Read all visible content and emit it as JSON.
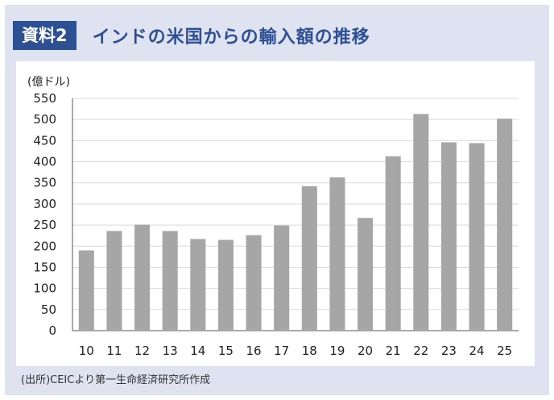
{
  "header": {
    "badge": "資料2",
    "title": "インドの米国からの輸入額の推移"
  },
  "source": "(出所)CEICより第一生命経済研究所作成",
  "colors": {
    "badge_bg": "#2d4f93",
    "title_text": "#2d4f93",
    "frame_bg": "#dfe3f1",
    "bar": "#a6a6a6",
    "gridline": "#d9d9d9"
  },
  "chart_data": {
    "type": "bar",
    "title": "",
    "xlabel": "",
    "ylabel": "(億ドル)",
    "ylim": [
      0,
      550
    ],
    "yticks": [
      "0",
      "50",
      "100",
      "150",
      "200",
      "250",
      "300",
      "350",
      "400",
      "450",
      "500",
      "550"
    ],
    "grid": true,
    "categories": [
      "10",
      "11",
      "12",
      "13",
      "14",
      "15",
      "16",
      "17",
      "18",
      "19",
      "20",
      "21",
      "22",
      "23",
      "24",
      "25"
    ],
    "values": [
      190,
      236,
      251,
      236,
      217,
      215,
      226,
      249,
      342,
      363,
      267,
      413,
      513,
      446,
      444,
      502
    ]
  }
}
